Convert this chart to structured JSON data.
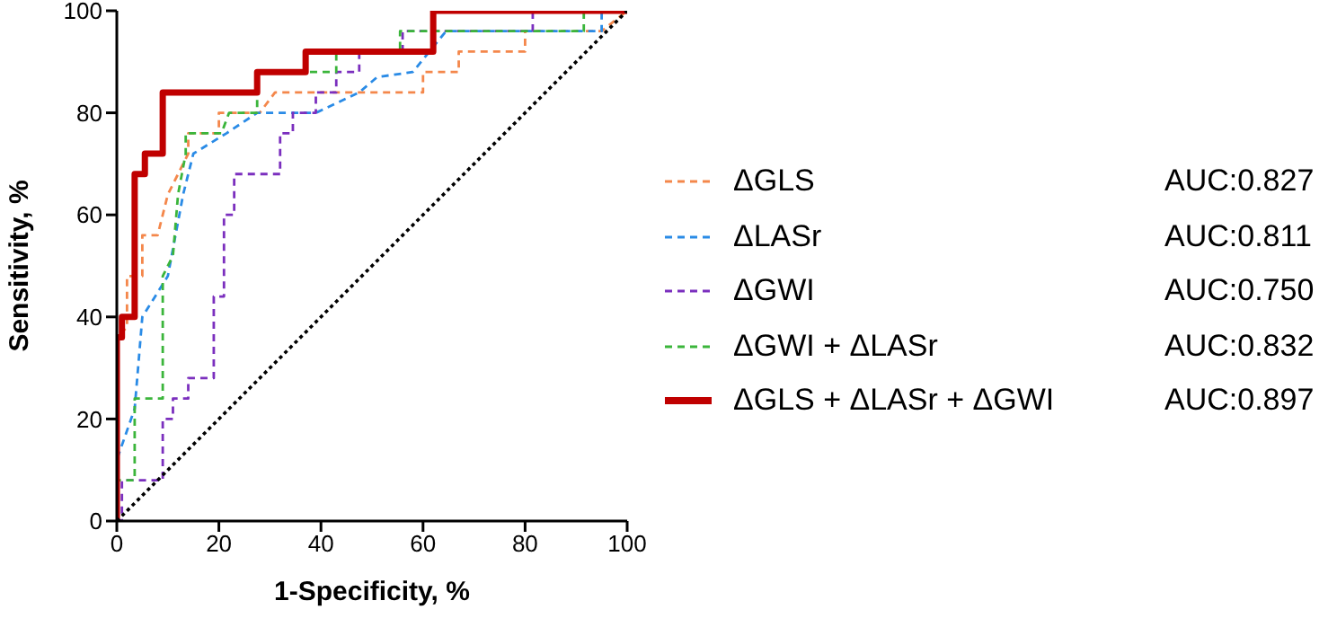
{
  "chart_data": {
    "type": "line",
    "xlabel": "1-Specificity, %",
    "ylabel": "Sensitivity, %",
    "xlim": [
      0,
      100
    ],
    "ylim": [
      0,
      100
    ],
    "xticks": [
      0,
      20,
      40,
      60,
      80,
      100
    ],
    "yticks": [
      0,
      20,
      40,
      60,
      80,
      100
    ],
    "grid": false,
    "legend": "right",
    "marker": "none",
    "annotations": [
      "AUC:0.827",
      "AUC:0.811",
      "AUC:0.750",
      "AUC:0.832",
      "AUC:0.897"
    ],
    "series": [
      {
        "name": "ΔGLS",
        "color": "#f4874b",
        "line_style": "dashed",
        "x": [
          0,
          0,
          2,
          2,
          5,
          5,
          8,
          10,
          12,
          14,
          14,
          20,
          20,
          28,
          31,
          60,
          60,
          67,
          67,
          80,
          80,
          95,
          100
        ],
        "values": [
          0,
          36,
          38,
          48,
          48,
          56,
          56,
          64,
          68,
          72,
          76,
          76,
          80,
          80,
          84,
          84,
          88,
          88,
          92,
          92,
          96,
          96,
          100
        ]
      },
      {
        "name": "ΔLASr",
        "color": "#2a8be6",
        "line_style": "dashed",
        "x": [
          0,
          0,
          3.5,
          5,
          10,
          13,
          15,
          21.5,
          27.5,
          39,
          47.5,
          51,
          58,
          64.5,
          95,
          95,
          100
        ],
        "values": [
          0,
          12,
          22,
          40,
          48,
          64,
          72,
          76,
          80,
          80,
          84,
          87,
          88,
          96,
          96,
          100,
          100
        ]
      },
      {
        "name": "ΔGWI",
        "color": "#7b2fbe",
        "line_style": "dashed",
        "x": [
          0,
          1,
          1,
          9,
          9,
          11,
          11,
          14,
          14,
          19,
          19,
          21,
          21,
          23,
          23,
          32,
          32,
          34.5,
          34.5,
          39,
          39,
          43,
          43,
          47.5,
          47.5,
          56,
          56,
          81.5,
          81.5,
          100
        ],
        "values": [
          0,
          0,
          8,
          8,
          20,
          20,
          24,
          24,
          28,
          28,
          44,
          44,
          60,
          60,
          68,
          68,
          76,
          76,
          80,
          80,
          84,
          84,
          88,
          88,
          92,
          92,
          96,
          96,
          100,
          100
        ]
      },
      {
        "name": "ΔGWI + ΔLASr",
        "color": "#3bb53b",
        "line_style": "dashed",
        "x": [
          0,
          0,
          3.5,
          3.5,
          9,
          9,
          11,
          12,
          13.5,
          13.5,
          20.5,
          22,
          27.5,
          27.5,
          43,
          43,
          55.5,
          55.5,
          91.5,
          91.5,
          100
        ],
        "values": [
          0,
          8,
          8,
          24,
          24,
          48,
          52,
          64,
          72,
          76,
          76,
          80,
          80,
          88,
          88,
          92,
          92,
          96,
          96,
          100,
          100
        ]
      },
      {
        "name": "ΔGLS + ΔLASr + ΔGWI",
        "color": "#c00000",
        "line_style": "solid",
        "x": [
          0,
          0,
          1,
          1,
          3.5,
          3.5,
          5.5,
          5.5,
          9,
          9,
          27.5,
          27.5,
          37,
          37,
          62,
          62,
          100
        ],
        "values": [
          0,
          36,
          36,
          40,
          40,
          68,
          68,
          72,
          72,
          84,
          84,
          88,
          88,
          92,
          92,
          100,
          100
        ]
      },
      {
        "color": "#000000",
        "line_style": "dotted",
        "x": [
          0,
          100
        ],
        "values": [
          0,
          100
        ]
      }
    ]
  }
}
